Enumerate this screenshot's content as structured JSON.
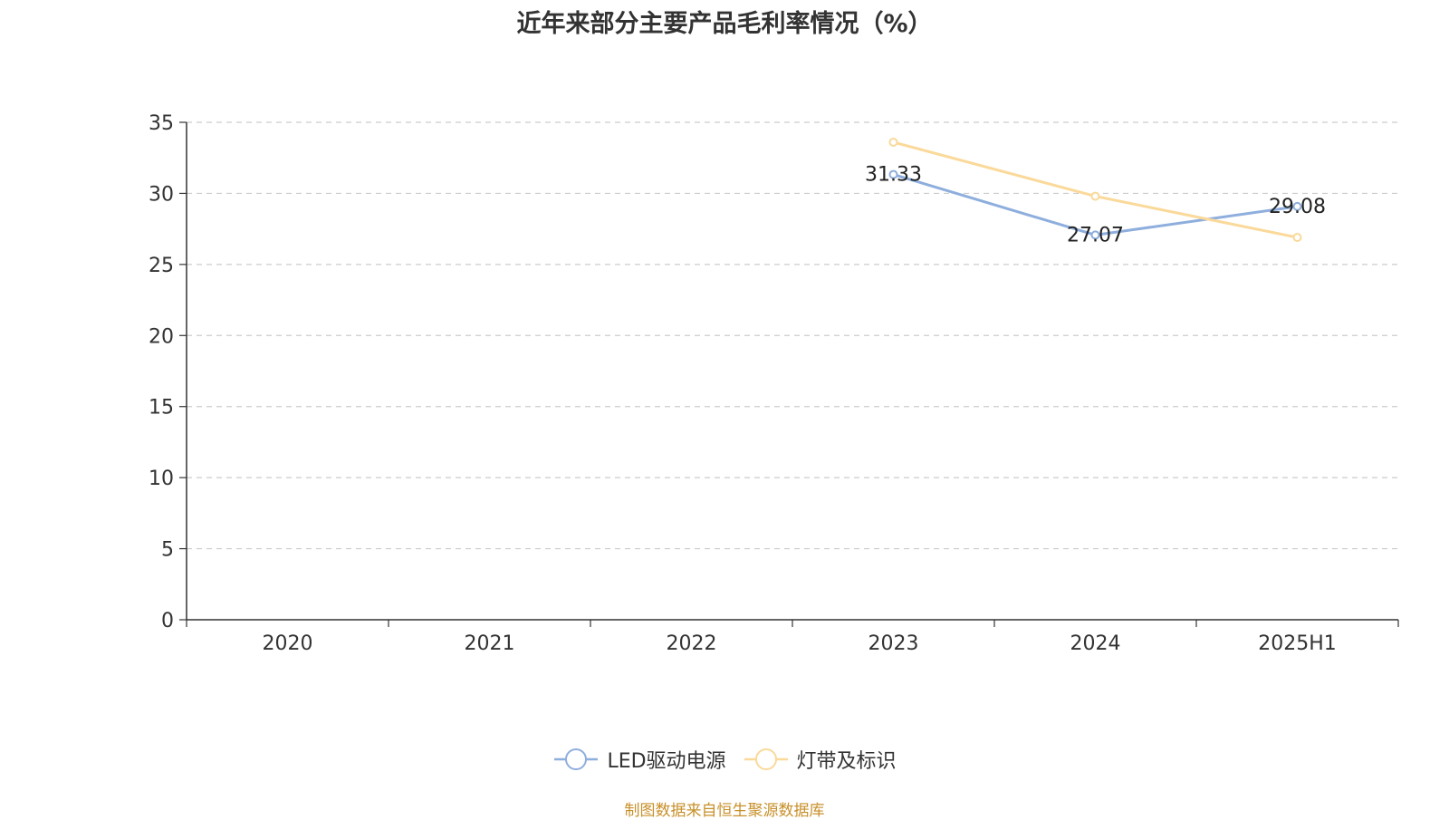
{
  "chart_data": {
    "type": "line",
    "title": "近年来部分主要产品毛利率情况（%）",
    "categories": [
      "2020",
      "2021",
      "2022",
      "2023",
      "2024",
      "2025H1"
    ],
    "ylim": [
      0,
      35
    ],
    "yticks": [
      0,
      5,
      10,
      15,
      20,
      25,
      30,
      35
    ],
    "grid": true,
    "legend_position": "bottom",
    "series": [
      {
        "name": "LED驱动电源",
        "color": "#8eaedd",
        "values": [
          null,
          null,
          null,
          31.33,
          27.07,
          29.08
        ],
        "labels": [
          "",
          "",
          "",
          "31.33",
          "27.07",
          "29.08"
        ]
      },
      {
        "name": "灯带及标识",
        "color": "#fad99a",
        "values": [
          null,
          null,
          null,
          33.6,
          29.8,
          26.9
        ],
        "labels": [
          "",
          "",
          "",
          "",
          "",
          ""
        ]
      }
    ]
  },
  "source_text": "制图数据来自恒生聚源数据库",
  "source_color": "#c8902a"
}
